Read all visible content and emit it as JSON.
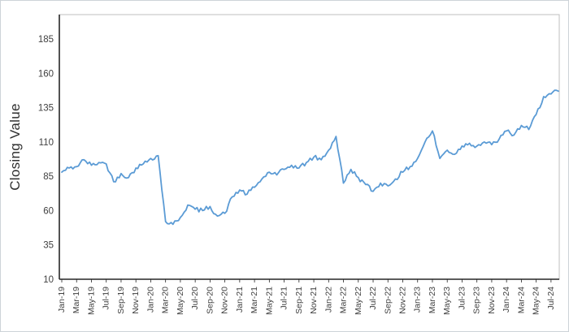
{
  "figure": {
    "background": "#ffffff",
    "border_color": "#cdd3d8"
  },
  "chart_data": {
    "type": "line",
    "title": "",
    "xlabel": "",
    "ylabel": "Closing Value",
    "line_color": "#5b9bd5",
    "axis_color": "#262626",
    "tick_label_color": "#404040",
    "grid": "off",
    "legend": "none",
    "ylim": [
      10,
      185
    ],
    "y_ticks": [
      10,
      35,
      60,
      85,
      110,
      135,
      160,
      185
    ],
    "x_tick_labels": [
      "Jan-19",
      "Mar-19",
      "May-19",
      "Jul-19",
      "Sep-19",
      "Nov-19",
      "Jan-20",
      "Mar-20",
      "May-20",
      "Jul-20",
      "Sep-20",
      "Nov-20",
      "Jan-21",
      "Mar-21",
      "May-21",
      "Jul-21",
      "Sep-21",
      "Nov-21",
      "Jan-22",
      "Mar-22",
      "May-22",
      "Jul-22",
      "Sep-22",
      "Nov-22",
      "Jan-23",
      "Mar-23",
      "May-23",
      "Jul-23",
      "Sep-23",
      "Nov-23",
      "Jan-24",
      "Mar-24",
      "May-24",
      "Jul-24"
    ],
    "categories": [
      "Jan-19",
      "Feb-19",
      "Mar-19",
      "Apr-19",
      "May-19",
      "Jun-19",
      "Jul-19",
      "Aug-19",
      "Sep-19",
      "Oct-19",
      "Nov-19",
      "Dec-19",
      "Jan-20",
      "Feb-20",
      "Mar-20",
      "Apr-20",
      "May-20",
      "Jun-20",
      "Jul-20",
      "Aug-20",
      "Sep-20",
      "Oct-20",
      "Nov-20",
      "Dec-20",
      "Jan-21",
      "Feb-21",
      "Mar-21",
      "Apr-21",
      "May-21",
      "Jun-21",
      "Jul-21",
      "Aug-21",
      "Sep-21",
      "Oct-21",
      "Nov-21",
      "Dec-21",
      "Jan-22",
      "Feb-22",
      "Mar-22",
      "Apr-22",
      "May-22",
      "Jun-22",
      "Jul-22",
      "Aug-22",
      "Sep-22",
      "Oct-22",
      "Nov-22",
      "Dec-22",
      "Jan-23",
      "Feb-23",
      "Mar-23",
      "Apr-23",
      "May-23",
      "Jun-23",
      "Jul-23",
      "Aug-23",
      "Sep-23",
      "Oct-23",
      "Nov-23",
      "Dec-23",
      "Jan-24",
      "Feb-24",
      "Mar-24",
      "Apr-24",
      "May-24",
      "Jun-24",
      "Jul-24",
      "Aug-24"
    ],
    "values": [
      88,
      91,
      92,
      97,
      93,
      95,
      94,
      81,
      87,
      84,
      91,
      94,
      98,
      100,
      52,
      50,
      55,
      64,
      61,
      60,
      63,
      56,
      58,
      70,
      75,
      72,
      77,
      83,
      88,
      86,
      90,
      93,
      91,
      95,
      99,
      97,
      104,
      114,
      80,
      90,
      84,
      79,
      74,
      80,
      78,
      83,
      88,
      92,
      98,
      110,
      118,
      98,
      104,
      101,
      107,
      109,
      107,
      110,
      108,
      112,
      118,
      115,
      122,
      119,
      130,
      143,
      145,
      147
    ]
  }
}
